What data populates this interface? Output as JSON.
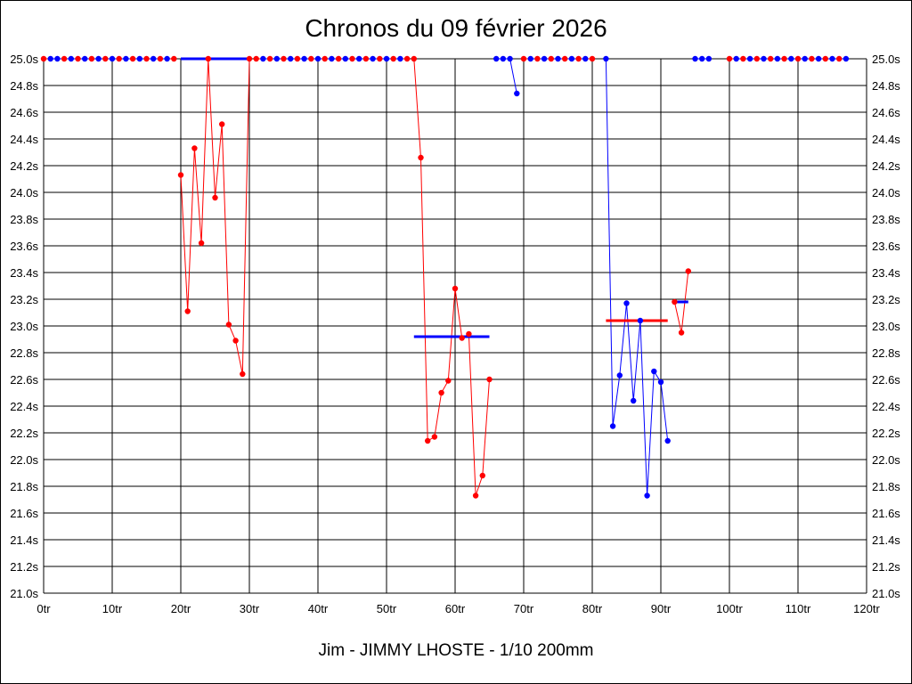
{
  "chart_data": {
    "type": "line",
    "title": "Chronos du 09 février 2026",
    "xlabel": "Jim - JIMMY LHOSTE - 1/10 200mm",
    "ylabel": "",
    "xlim": [
      0,
      120
    ],
    "ylim": [
      21.0,
      25.0
    ],
    "x_ticks": [
      "0tr",
      "10tr",
      "20tr",
      "30tr",
      "40tr",
      "50tr",
      "60tr",
      "70tr",
      "80tr",
      "90tr",
      "100tr",
      "110tr",
      "120tr"
    ],
    "y_ticks": [
      "25.0s",
      "24.8s",
      "24.6s",
      "24.4s",
      "24.2s",
      "24.0s",
      "23.8s",
      "23.6s",
      "23.4s",
      "23.2s",
      "23.0s",
      "22.8s",
      "22.6s",
      "22.4s",
      "22.2s",
      "22.0s",
      "21.8s",
      "21.6s",
      "21.4s",
      "21.2s",
      "21.0s"
    ],
    "grid": true,
    "legend": "none",
    "colors": {
      "red": "#ff0000",
      "blue": "#0000ff",
      "grid": "#000000",
      "background": "#ffffff"
    },
    "series": [
      {
        "color": "red",
        "points": [
          [
            0,
            25.0
          ],
          [
            3,
            25.0
          ],
          [
            5,
            25.0
          ],
          [
            7,
            25.0
          ],
          [
            9,
            25.0
          ],
          [
            11,
            25.0
          ],
          [
            13,
            25.0
          ],
          [
            15,
            25.0
          ],
          [
            17,
            25.0
          ],
          [
            19,
            25.0
          ]
        ]
      },
      {
        "color": "blue",
        "points": [
          [
            1,
            25.0
          ],
          [
            2,
            25.0
          ],
          [
            4,
            25.0
          ],
          [
            6,
            25.0
          ],
          [
            8,
            25.0
          ],
          [
            10,
            25.0
          ],
          [
            12,
            25.0
          ],
          [
            14,
            25.0
          ],
          [
            16,
            25.0
          ],
          [
            18,
            25.0
          ]
        ]
      },
      {
        "color": "red",
        "points": [
          [
            20,
            24.13
          ],
          [
            21,
            23.11
          ],
          [
            22,
            24.33
          ],
          [
            23,
            23.62
          ],
          [
            24,
            25.0
          ],
          [
            25,
            23.96
          ],
          [
            26,
            24.51
          ],
          [
            27,
            23.01
          ],
          [
            28,
            22.89
          ],
          [
            29,
            22.64
          ],
          [
            30,
            25.0
          ]
        ]
      },
      {
        "color": "red",
        "points": [
          [
            31,
            25.0
          ],
          [
            33,
            25.0
          ],
          [
            35,
            25.0
          ],
          [
            37,
            25.0
          ],
          [
            39,
            25.0
          ],
          [
            41,
            25.0
          ],
          [
            43,
            25.0
          ],
          [
            45,
            25.0
          ],
          [
            47,
            25.0
          ],
          [
            49,
            25.0
          ],
          [
            51,
            25.0
          ],
          [
            53,
            25.0
          ]
        ]
      },
      {
        "color": "blue",
        "points": [
          [
            32,
            25.0
          ],
          [
            34,
            25.0
          ],
          [
            36,
            25.0
          ],
          [
            38,
            25.0
          ],
          [
            40,
            25.0
          ],
          [
            42,
            25.0
          ],
          [
            44,
            25.0
          ],
          [
            46,
            25.0
          ],
          [
            48,
            25.0
          ],
          [
            50,
            25.0
          ],
          [
            52,
            25.0
          ]
        ]
      },
      {
        "color": "red",
        "points": [
          [
            54,
            25.0
          ],
          [
            55,
            24.26
          ],
          [
            56,
            22.14
          ],
          [
            57,
            22.17
          ],
          [
            58,
            22.5
          ],
          [
            59,
            22.59
          ],
          [
            60,
            23.28
          ],
          [
            61,
            22.91
          ],
          [
            62,
            22.94
          ],
          [
            63,
            21.73
          ],
          [
            64,
            21.88
          ],
          [
            65,
            22.6
          ]
        ]
      },
      {
        "color": "blue",
        "points": [
          [
            66,
            25.0
          ],
          [
            67,
            25.0
          ],
          [
            68,
            25.0
          ],
          [
            69,
            24.74
          ]
        ]
      },
      {
        "color": "red",
        "points": [
          [
            70,
            25.0
          ],
          [
            72,
            25.0
          ],
          [
            74,
            25.0
          ],
          [
            76,
            25.0
          ],
          [
            78,
            25.0
          ],
          [
            80,
            25.0
          ]
        ]
      },
      {
        "color": "blue",
        "points": [
          [
            71,
            25.0
          ],
          [
            73,
            25.0
          ],
          [
            75,
            25.0
          ],
          [
            77,
            25.0
          ],
          [
            79,
            25.0
          ]
        ]
      },
      {
        "color": "blue",
        "points": [
          [
            82,
            25.0
          ],
          [
            83,
            22.25
          ],
          [
            84,
            22.63
          ],
          [
            85,
            23.17
          ],
          [
            86,
            22.44
          ],
          [
            87,
            23.04
          ],
          [
            88,
            21.73
          ],
          [
            89,
            22.66
          ],
          [
            90,
            22.58
          ],
          [
            91,
            22.14
          ]
        ]
      },
      {
        "color": "red",
        "points": [
          [
            92,
            23.18
          ],
          [
            93,
            22.95
          ],
          [
            94,
            23.41
          ]
        ]
      },
      {
        "color": "blue",
        "points": [
          [
            95,
            25.0
          ],
          [
            96,
            25.0
          ],
          [
            97,
            25.0
          ]
        ]
      },
      {
        "color": "red",
        "points": [
          [
            100,
            25.0
          ],
          [
            102,
            25.0
          ],
          [
            104,
            25.0
          ],
          [
            106,
            25.0
          ],
          [
            108,
            25.0
          ],
          [
            110,
            25.0
          ],
          [
            112,
            25.0
          ],
          [
            114,
            25.0
          ],
          [
            116,
            25.0
          ]
        ]
      },
      {
        "color": "blue",
        "points": [
          [
            101,
            25.0
          ],
          [
            103,
            25.0
          ],
          [
            105,
            25.0
          ],
          [
            107,
            25.0
          ],
          [
            109,
            25.0
          ],
          [
            111,
            25.0
          ],
          [
            113,
            25.0
          ],
          [
            115,
            25.0
          ],
          [
            117,
            25.0
          ]
        ]
      }
    ],
    "average_lines": [
      {
        "color": "blue",
        "x": [
          20,
          30
        ],
        "y": 25.0
      },
      {
        "color": "blue",
        "x": [
          54,
          65
        ],
        "y": 22.92
      },
      {
        "color": "red",
        "x": [
          82,
          91
        ],
        "y": 23.04
      },
      {
        "color": "blue",
        "x": [
          92,
          94
        ],
        "y": 23.18
      }
    ]
  }
}
